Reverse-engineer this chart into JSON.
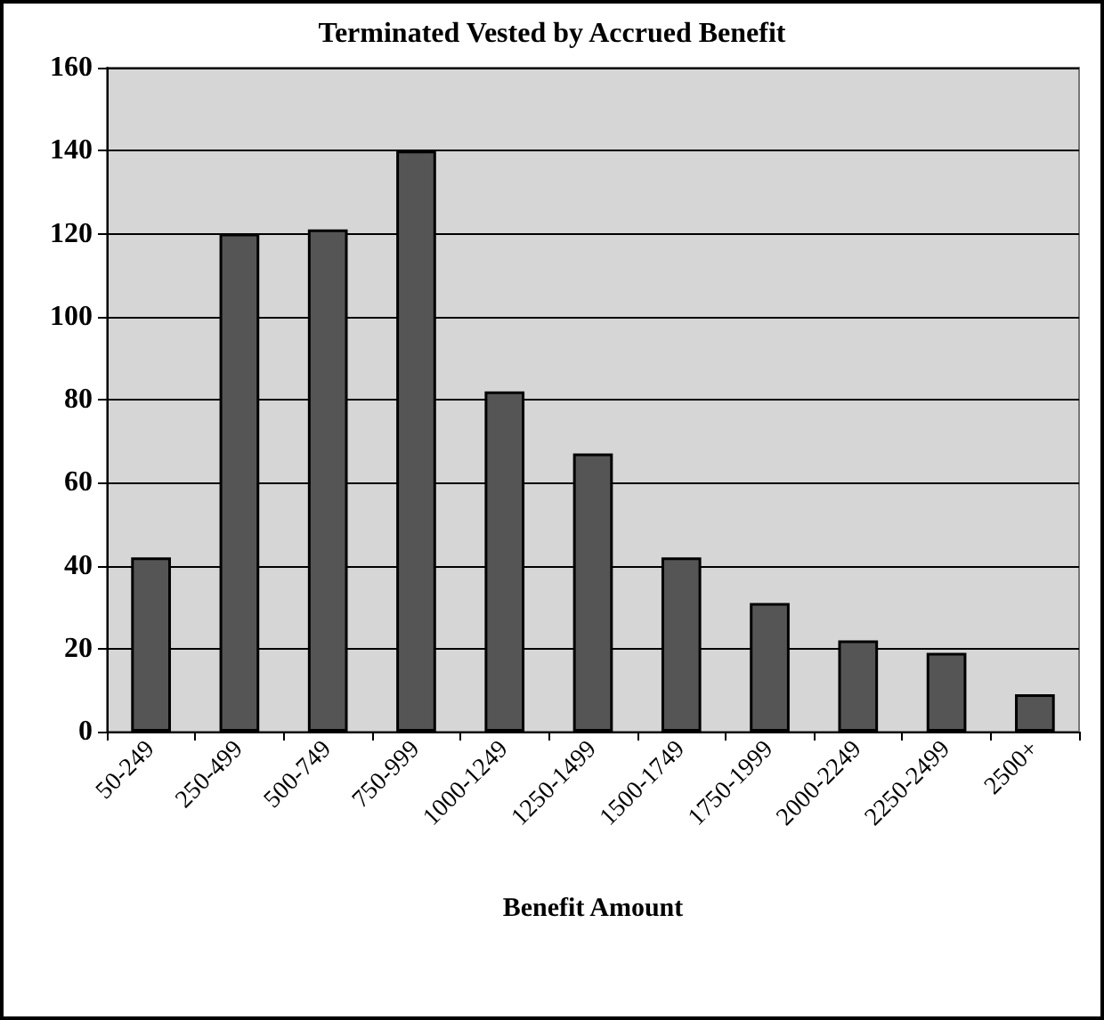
{
  "chart_data": {
    "type": "bar",
    "title": "Terminated Vested by Accrued Benefit",
    "xlabel": "Benefit Amount",
    "categories": [
      "50-249",
      "250-499",
      "500-749",
      "750-999",
      "1000-1249",
      "1250-1499",
      "1500-1749",
      "1750-1999",
      "2000-2249",
      "2250-2499",
      "2500+"
    ],
    "values": [
      42,
      120,
      121,
      140,
      82,
      67,
      42,
      31,
      22,
      19,
      9
    ],
    "color": "#555555",
    "ylim": [
      0,
      160
    ],
    "yticks": [
      0,
      20,
      40,
      60,
      80,
      100,
      120,
      140,
      160
    ],
    "grid": "y"
  }
}
